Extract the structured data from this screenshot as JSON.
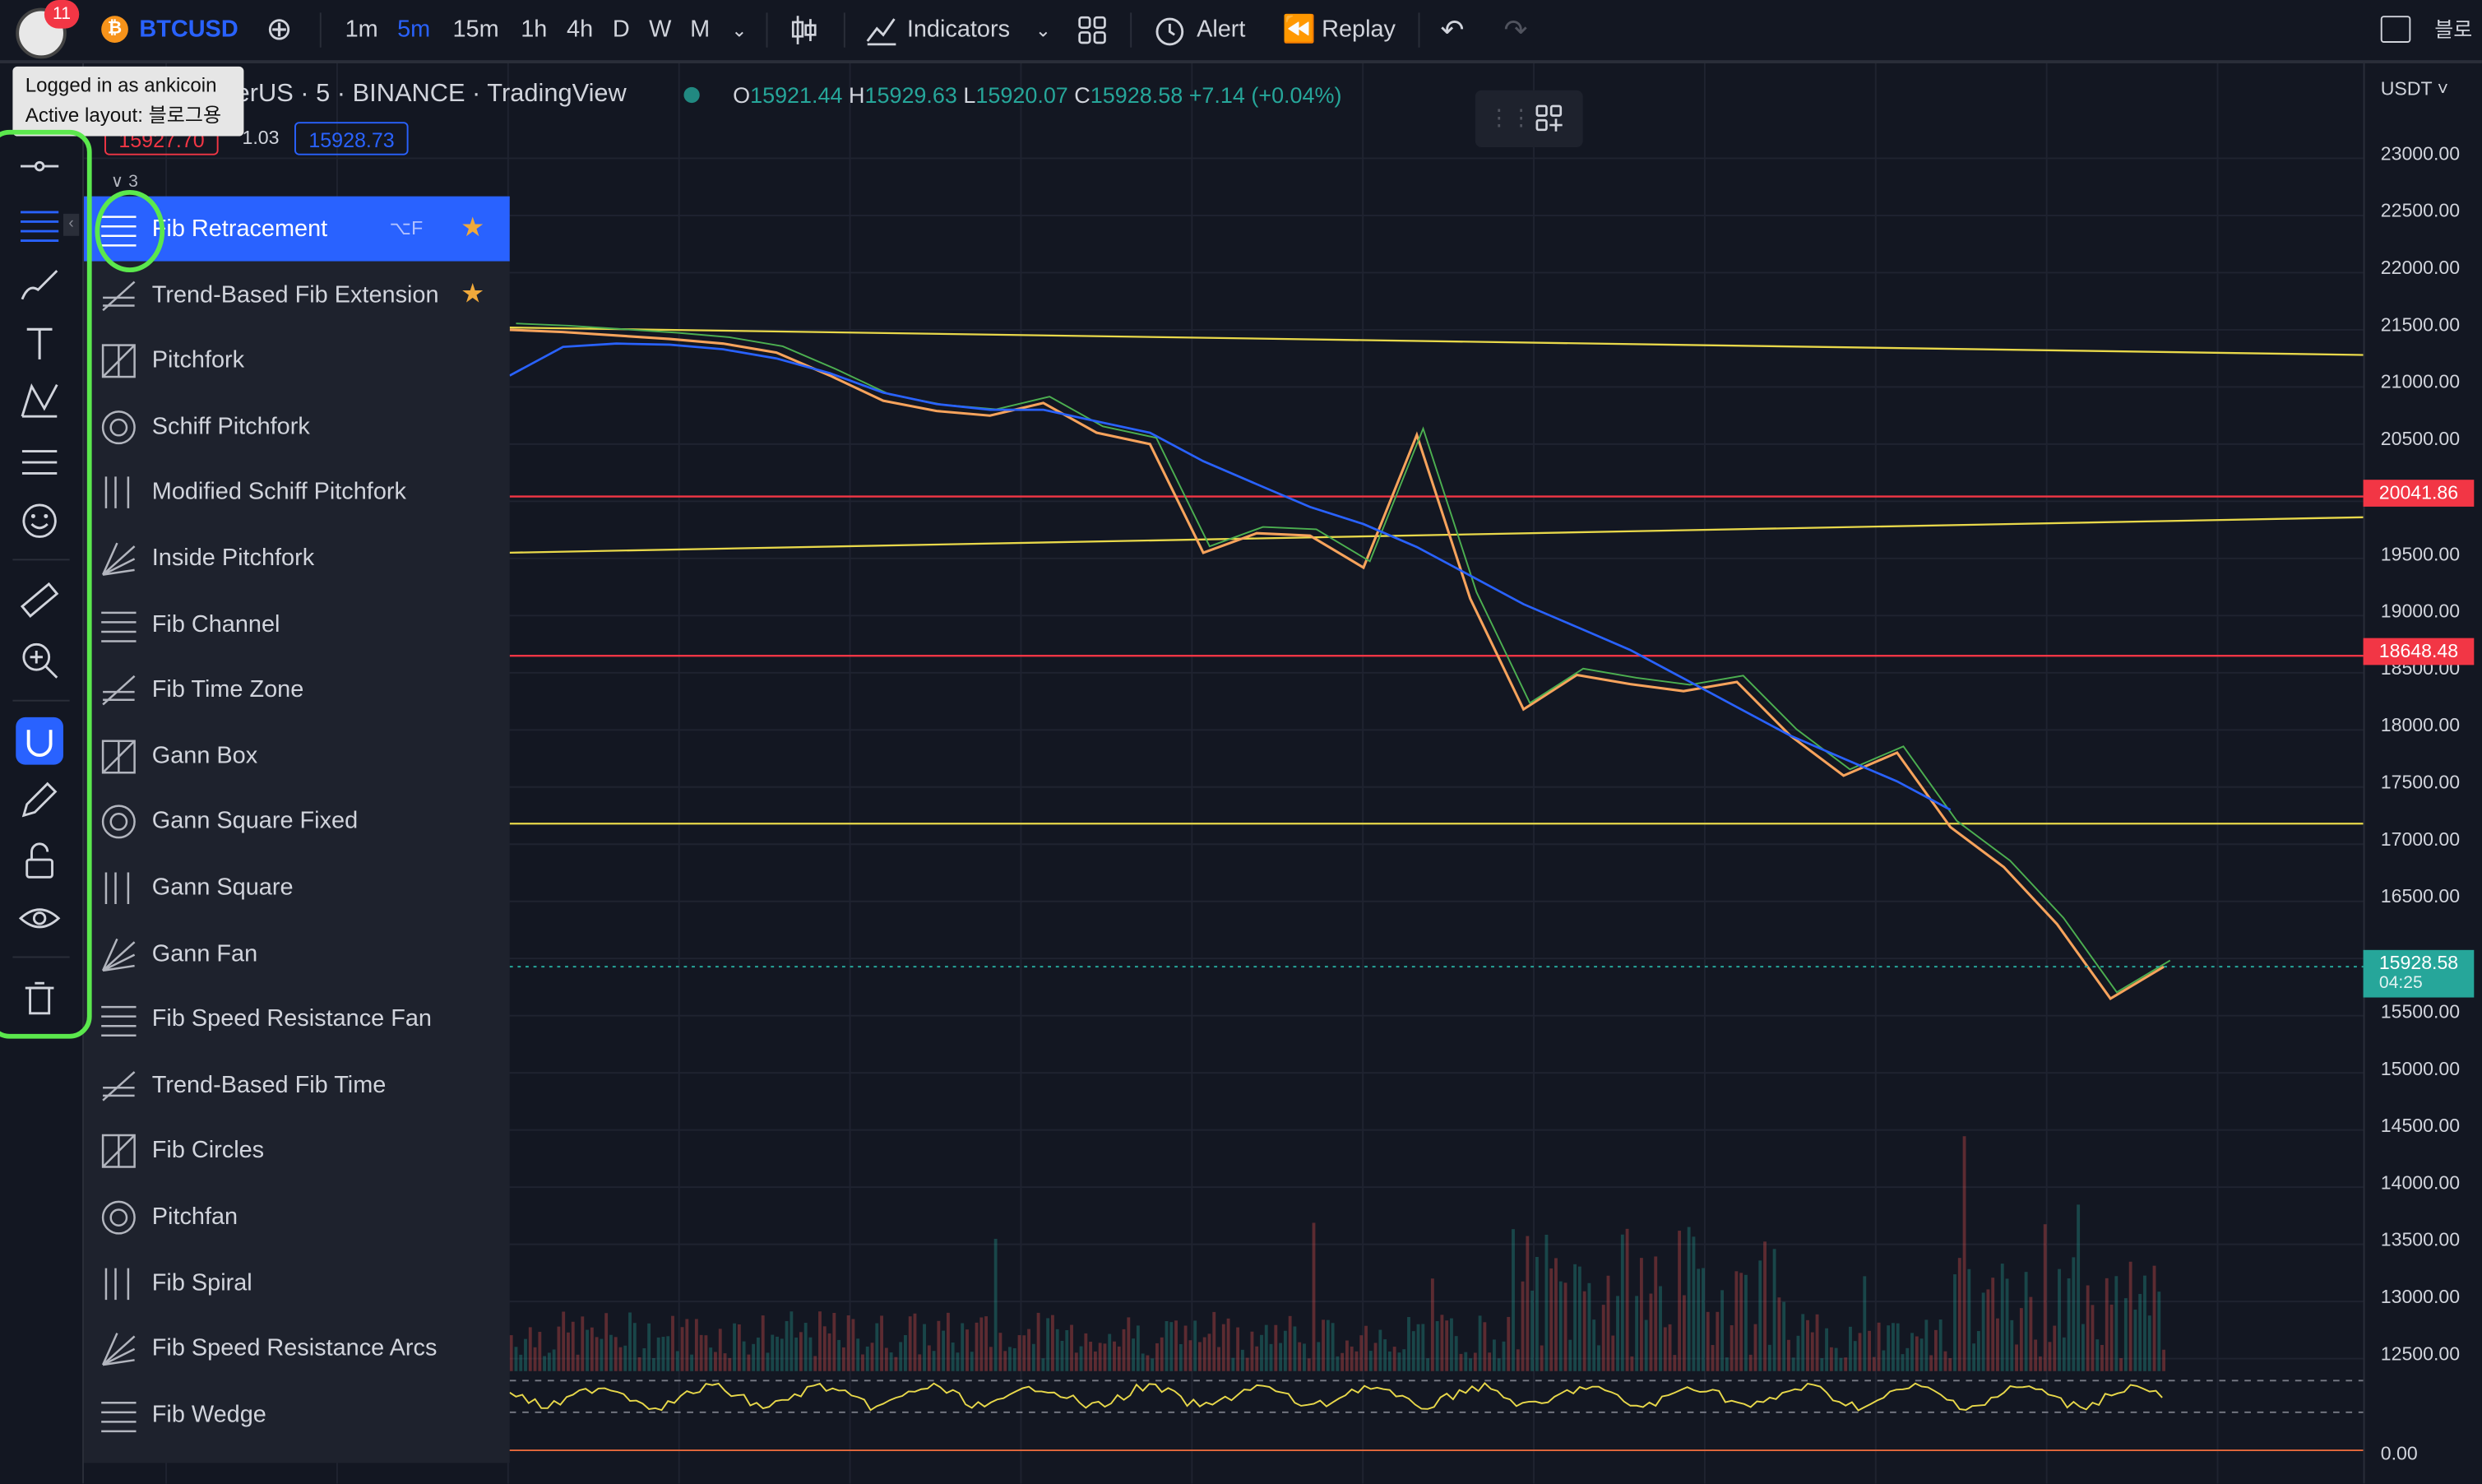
{
  "topbar": {
    "notification_count": "11",
    "symbol": "BTCUSD",
    "symbol_glyph": "₿",
    "intervals": [
      "1m",
      "5m",
      "15m",
      "1h",
      "4h",
      "D",
      "W",
      "M"
    ],
    "active_interval": "5m",
    "indicators_label": "Indicators",
    "alert_label": "Alert",
    "replay_label": "Replay",
    "right_cut_text": "블로"
  },
  "tooltip": {
    "line1": "Logged in as ankicoin",
    "line2": "Active layout: 블로그용"
  },
  "legend": {
    "title": "herUS · 5 · BINANCE · TradingView",
    "o_key": "O",
    "o": "15921.44",
    "h_key": "H",
    "h": "15929.63",
    "l_key": "L",
    "l": "15920.07",
    "c_key": "C",
    "c": "15928.58",
    "change": "+7.14 (+0.04%)",
    "sell_price": "15927.70",
    "spread": "1.03",
    "buy_price": "15928.73",
    "collapsed": "∨ 3"
  },
  "fib_menu": {
    "items": [
      {
        "label": "Fib Retracement",
        "shortcut": "⌥F",
        "starred": true,
        "icon": "fib-retracement-icon"
      },
      {
        "label": "Trend-Based Fib Extension",
        "starred": true,
        "icon": "trend-fib-extension-icon"
      },
      {
        "label": "Pitchfork",
        "icon": "pitchfork-icon"
      },
      {
        "label": "Schiff Pitchfork",
        "icon": "schiff-pitchfork-icon"
      },
      {
        "label": "Modified Schiff Pitchfork",
        "icon": "modified-schiff-pitchfork-icon"
      },
      {
        "label": "Inside Pitchfork",
        "icon": "inside-pitchfork-icon"
      },
      {
        "label": "Fib Channel",
        "icon": "fib-channel-icon"
      },
      {
        "label": "Fib Time Zone",
        "icon": "fib-time-zone-icon"
      },
      {
        "label": "Gann Box",
        "icon": "gann-box-icon"
      },
      {
        "label": "Gann Square Fixed",
        "icon": "gann-square-fixed-icon"
      },
      {
        "label": "Gann Square",
        "icon": "gann-square-icon"
      },
      {
        "label": "Gann Fan",
        "icon": "gann-fan-icon"
      },
      {
        "label": "Fib Speed Resistance Fan",
        "icon": "fib-speed-fan-icon"
      },
      {
        "label": "Trend-Based Fib Time",
        "icon": "trend-fib-time-icon"
      },
      {
        "label": "Fib Circles",
        "icon": "fib-circles-icon"
      },
      {
        "label": "Pitchfan",
        "icon": "pitchfan-icon"
      },
      {
        "label": "Fib Spiral",
        "icon": "fib-spiral-icon"
      },
      {
        "label": "Fib Speed Resistance Arcs",
        "icon": "fib-speed-arcs-icon"
      },
      {
        "label": "Fib Wedge",
        "icon": "fib-wedge-icon"
      }
    ]
  },
  "price_axis": {
    "currency": "USDT ˅",
    "ticks": [
      "23000.00",
      "22500.00",
      "22000.00",
      "21500.00",
      "21000.00",
      "20500.00",
      "19500.00",
      "19000.00",
      "18500.00",
      "18000.00",
      "17500.00",
      "17000.00",
      "16500.00",
      "15500.00",
      "15000.00",
      "14500.00",
      "14000.00",
      "13500.00",
      "13000.00",
      "12500.00"
    ],
    "indicator_tick": "0.00",
    "labels": [
      {
        "price": "20041.86",
        "color": "#f23645"
      },
      {
        "price": "18648.48",
        "color": "#f23645"
      }
    ],
    "last_price": "15928.58",
    "countdown": "04:25",
    "last_price_color": "#26a69a"
  },
  "chart_data": {
    "type": "line",
    "title": "",
    "xlabel": "",
    "ylabel": "",
    "ylim": [
      12250,
      23300
    ],
    "series": [
      {
        "values": [
          21500,
          21480,
          21450,
          21420,
          21380,
          21300,
          21100,
          20880,
          20790,
          20750,
          20860,
          20600,
          20500,
          19550,
          19720,
          19700,
          19420,
          20580,
          19150,
          18180,
          18480,
          18400,
          18340,
          18420,
          17950,
          17600,
          17800,
          17150,
          16800,
          16300,
          15650,
          15928
        ]
      },
      {
        "values": [
          21100,
          21350,
          21380,
          21370,
          21330,
          21250,
          21120,
          20950,
          20850,
          20800,
          20800,
          20700,
          20600,
          20350,
          20150,
          19950,
          19800,
          19600,
          19350,
          19100,
          18900,
          18700,
          18450,
          18200,
          17950,
          17750,
          17550,
          17300
        ]
      }
    ],
    "horizontal_lines": [
      {
        "price": 20041.86,
        "color": "#f23645"
      },
      {
        "price": 18648.48,
        "color": "#f23645"
      },
      {
        "price": 17180,
        "color": "#e8d84a"
      }
    ],
    "trend_lines": [
      {
        "from": 21520,
        "to": 21280,
        "color": "#e8d84a"
      },
      {
        "from": 19550,
        "to": 19860,
        "color": "#e8d84a"
      }
    ],
    "grid": true
  }
}
